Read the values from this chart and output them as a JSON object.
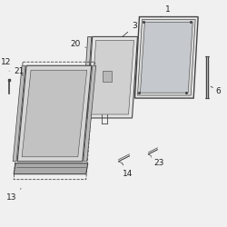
{
  "bg_color": "#f0f0f0",
  "line_color": "#444444",
  "label_color": "#222222",
  "font_size": 6.5,
  "parts": [
    {
      "id": "1"
    },
    {
      "id": "3"
    },
    {
      "id": "6"
    },
    {
      "id": "12"
    },
    {
      "id": "13"
    },
    {
      "id": "14"
    },
    {
      "id": "20"
    },
    {
      "id": "21"
    },
    {
      "id": "23"
    }
  ]
}
